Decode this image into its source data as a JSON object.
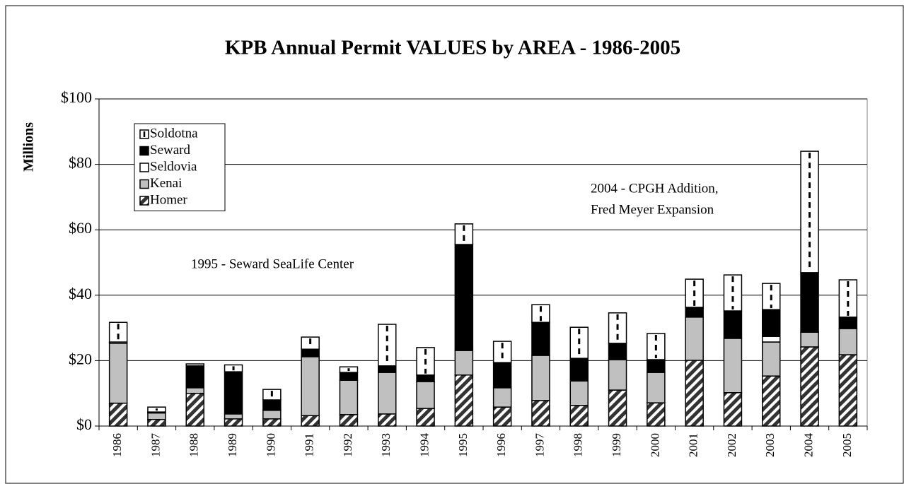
{
  "chart_data": {
    "type": "stacked_bar",
    "title": "KPB Annual Permit VALUES by AREA - 1986-2005",
    "y_label": "Millions",
    "annotations": [
      "1995 - Seward SeaLife Center",
      "2004 - CPGH Addition,",
      "Fred Meyer Expansion"
    ],
    "categories": [
      "1986",
      "1987",
      "1988",
      "1989",
      "1990",
      "1991",
      "1992",
      "1993",
      "1994",
      "1995",
      "1996",
      "1997",
      "1998",
      "1999",
      "2000",
      "2001",
      "2002",
      "2003",
      "2004",
      "2005"
    ],
    "series": [
      {
        "name": "Homer",
        "color": "#333333",
        "pattern": "hatch",
        "values": [
          7,
          2,
          10,
          2.2,
          2.2,
          3.2,
          3.5,
          3.7,
          5.4,
          15.6,
          5.8,
          7.8,
          6.3,
          11,
          7.1,
          20.1,
          10.2,
          15.3,
          24.2,
          21.8
        ]
      },
      {
        "name": "Kenai",
        "color": "#c0c0c0",
        "pattern": "none",
        "values": [
          18.3,
          2,
          1.7,
          1.5,
          2.6,
          18,
          10.5,
          12.7,
          8.2,
          7.5,
          5.9,
          13.8,
          7.5,
          9.3,
          9.3,
          13.2,
          16.6,
          10.4,
          4.5,
          8
        ]
      },
      {
        "name": "Seldovia",
        "color": "#ffffff",
        "pattern": "none",
        "values": [
          0.4,
          0,
          0,
          0,
          0.2,
          0,
          0,
          0,
          0,
          0,
          0,
          0,
          0,
          0,
          0,
          0,
          0,
          1.7,
          0,
          0
        ]
      },
      {
        "name": "Seward",
        "color": "#000000",
        "pattern": "none",
        "values": [
          0,
          0.3,
          6.7,
          12.9,
          3,
          2.3,
          2.4,
          2,
          2,
          32.4,
          7.7,
          10.1,
          6.9,
          5,
          3.9,
          3,
          8.4,
          8.2,
          18.2,
          3.5
        ]
      },
      {
        "name": "Soldotna",
        "color": "#ffffff",
        "pattern": "dash",
        "values": [
          6,
          1.5,
          0.6,
          2.1,
          3.2,
          3.7,
          1.7,
          12.7,
          8.4,
          6.3,
          6.5,
          5.4,
          9.5,
          9.3,
          8,
          8.6,
          11,
          8,
          37.1,
          11.4
        ]
      }
    ],
    "ylim": [
      0,
      100
    ],
    "yticks": [
      {
        "value": 0,
        "label": "$0"
      },
      {
        "value": 20,
        "label": "$20"
      },
      {
        "value": 40,
        "label": "$40"
      },
      {
        "value": 60,
        "label": "$60"
      },
      {
        "value": 80,
        "label": "$80"
      },
      {
        "value": 100,
        "label": "$100"
      }
    ],
    "grid": true,
    "legend_position": "top-left"
  }
}
